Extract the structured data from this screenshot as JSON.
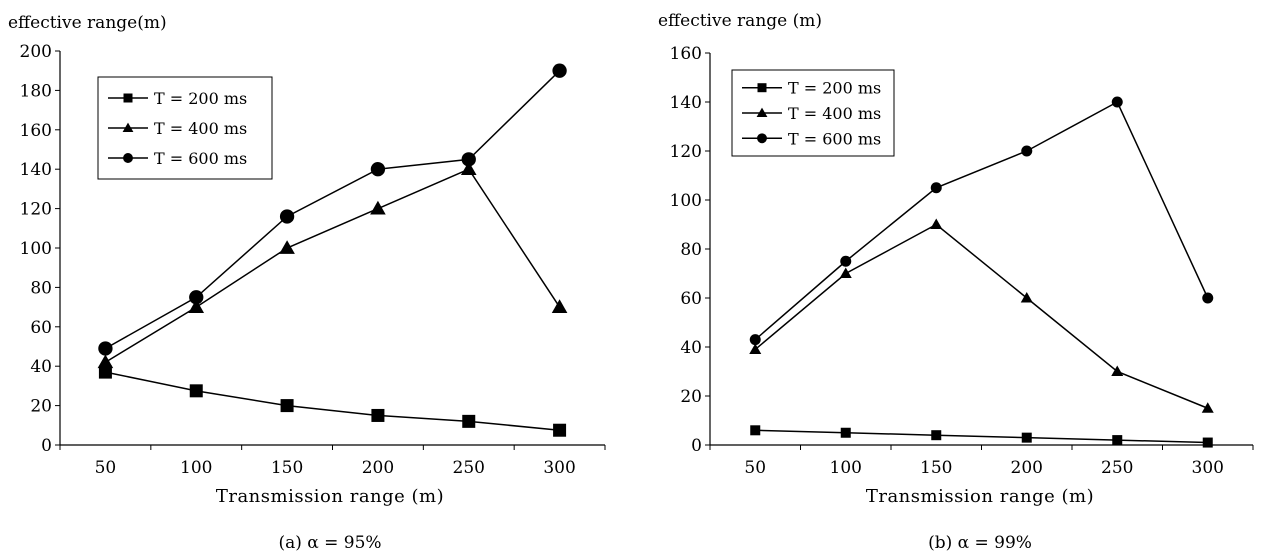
{
  "chart_data": [
    {
      "type": "line",
      "caption": "(a) α = 95%",
      "ylabel": "effective range(m)",
      "xlabel": "Transmission range (m)",
      "x": [
        50,
        100,
        150,
        200,
        250,
        300
      ],
      "ylim": [
        0,
        200
      ],
      "yticks": [
        0,
        20,
        40,
        60,
        80,
        100,
        120,
        140,
        160,
        180,
        200
      ],
      "legend_position": "top-left",
      "series": [
        {
          "name": "T = 200 ms",
          "marker": "square",
          "values": [
            37,
            27.5,
            20,
            15,
            12,
            7.5
          ]
        },
        {
          "name": "T = 400 ms",
          "marker": "triangle",
          "values": [
            42,
            70,
            100,
            120,
            140,
            70
          ]
        },
        {
          "name": "T = 600 ms",
          "marker": "circle",
          "values": [
            49,
            75,
            116,
            140,
            145,
            190
          ]
        }
      ]
    },
    {
      "type": "line",
      "caption": "(b) α = 99%",
      "ylabel": "effective range (m)",
      "xlabel": "Transmission range (m)",
      "x": [
        50,
        100,
        150,
        200,
        250,
        300
      ],
      "ylim": [
        0,
        160
      ],
      "yticks": [
        0,
        20,
        40,
        60,
        80,
        100,
        120,
        140,
        160
      ],
      "legend_position": "top-left",
      "series": [
        {
          "name": "T = 200 ms",
          "marker": "square",
          "values": [
            6,
            5,
            4,
            3,
            2,
            1
          ]
        },
        {
          "name": "T = 400 ms",
          "marker": "triangle",
          "values": [
            39,
            70,
            90,
            60,
            30,
            15
          ]
        },
        {
          "name": "T = 600 ms",
          "marker": "circle",
          "values": [
            43,
            75,
            105,
            120,
            140,
            60
          ]
        }
      ]
    }
  ]
}
